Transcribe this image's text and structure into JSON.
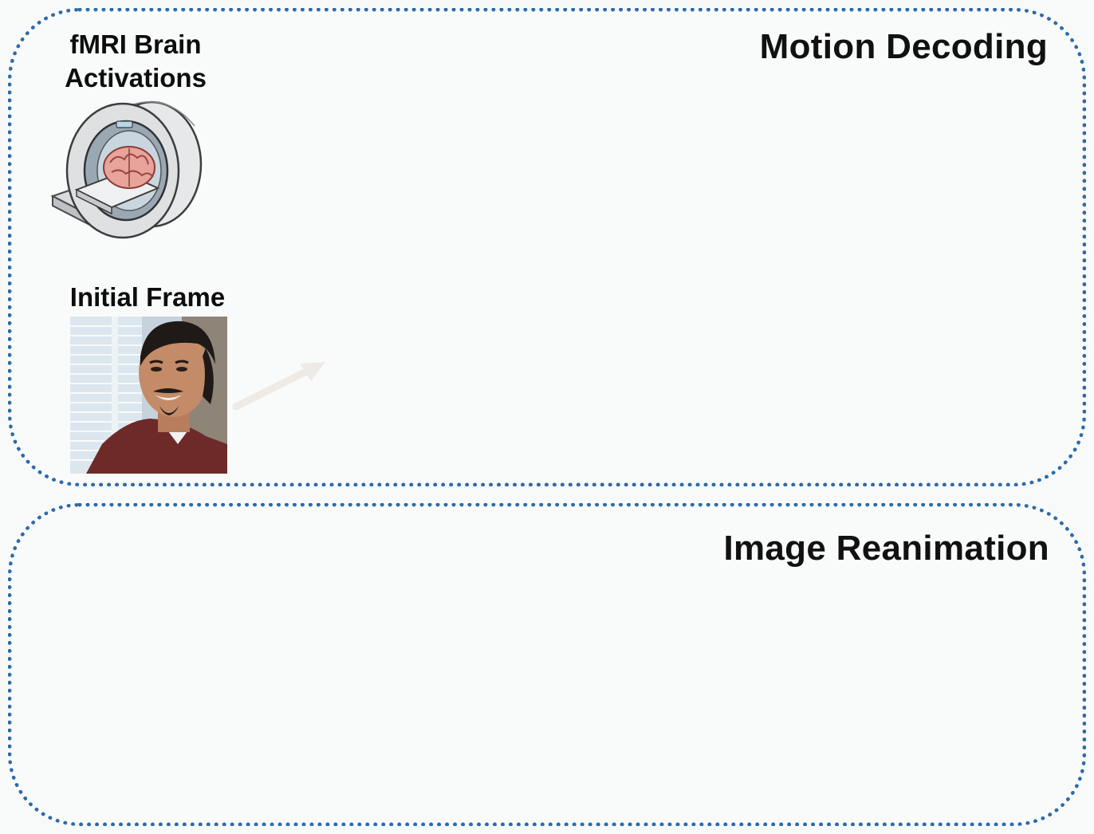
{
  "panels": {
    "motion_decoding": {
      "title": "Motion Decoding",
      "fmri_label": "fMRI Brain\nActivations",
      "initial_frame_label": "Initial Frame"
    },
    "image_reanimation": {
      "title": "Image Reanimation"
    }
  },
  "colors": {
    "panel_border": "#2e6aa8",
    "background": "#f8fafa",
    "text": "#111111"
  },
  "icons": [
    "mri-scanner-with-brain-icon",
    "initial-frame-photo",
    "arrow-icon"
  ]
}
